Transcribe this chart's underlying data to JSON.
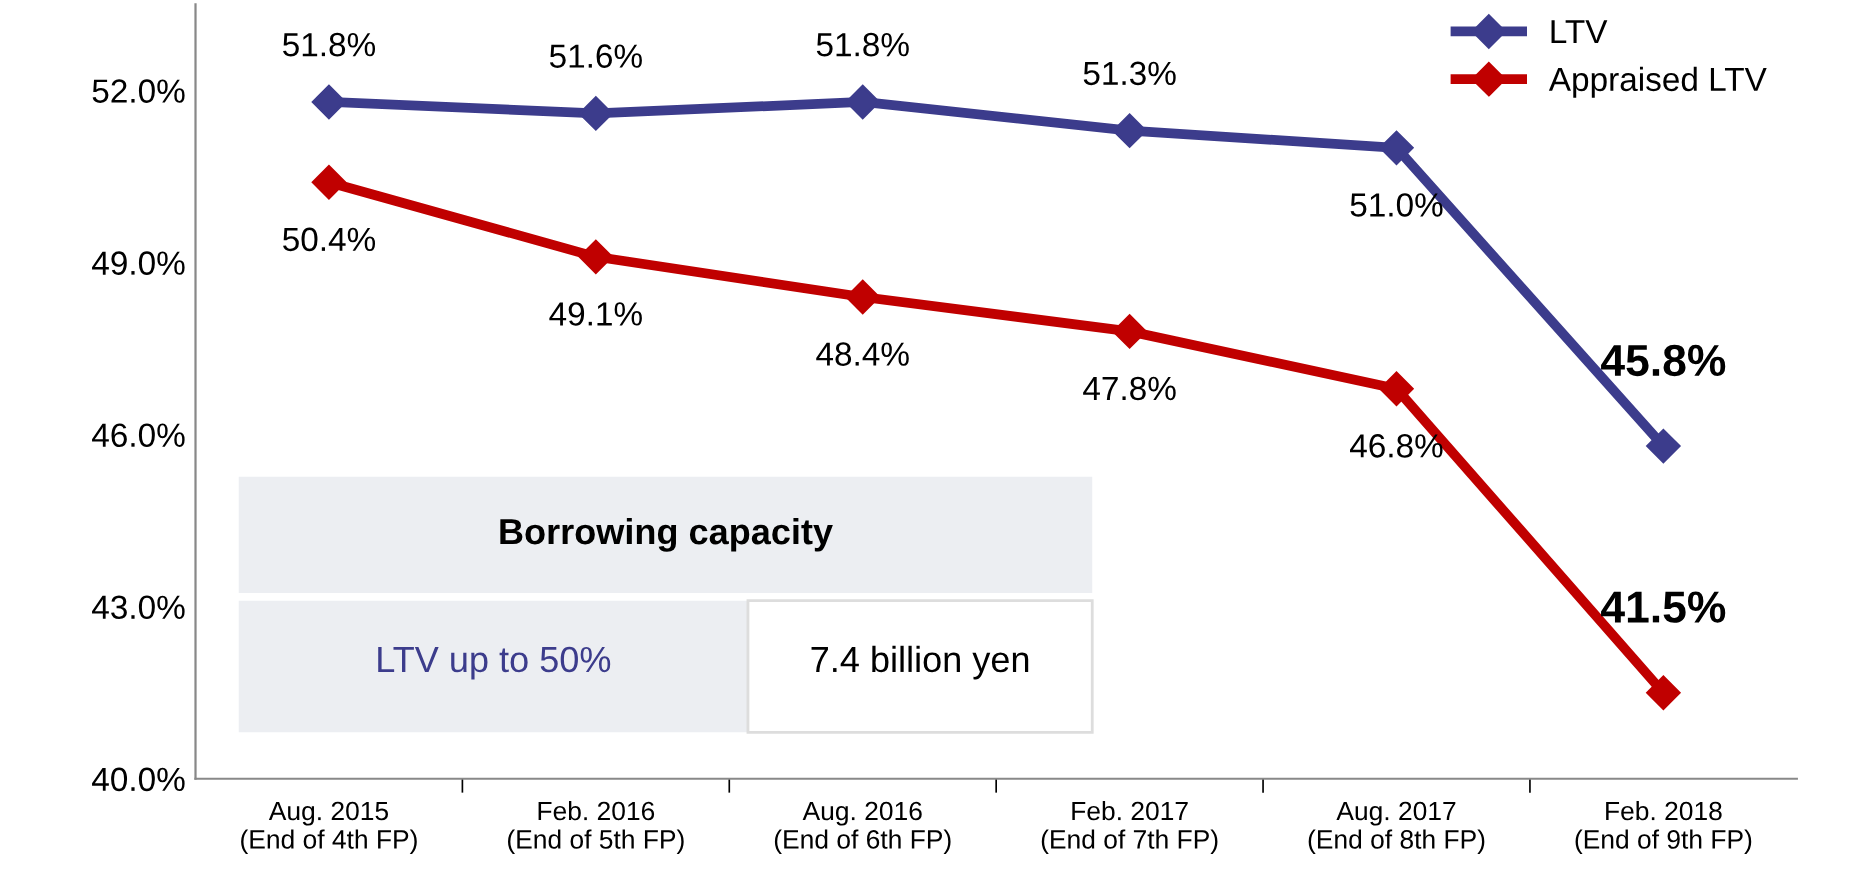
{
  "chart_data": {
    "type": "line",
    "categories": [
      "Aug. 2015\n(End of 4th FP)",
      "Feb. 2016\n(End of 5th FP)",
      "Aug. 2016\n(End of 6th FP)",
      "Feb. 2017\n(End of 7th FP)",
      "Aug. 2017\n(End of 8th FP)",
      "Feb. 2018\n(End of 9th FP)"
    ],
    "series": [
      {
        "name": "LTV",
        "color": "#3c3c8c",
        "values": [
          51.8,
          51.6,
          51.8,
          51.3,
          51.0,
          45.8
        ],
        "value_labels": [
          "51.8%",
          "51.6%",
          "51.8%",
          "51.3%",
          "51.0%",
          "45.8%"
        ]
      },
      {
        "name": "Appraised LTV",
        "color": "#c00000",
        "values": [
          50.4,
          49.1,
          48.4,
          47.8,
          46.8,
          41.5
        ],
        "value_labels": [
          "50.4%",
          "49.1%",
          "48.4%",
          "47.8%",
          "46.8%",
          "41.5%"
        ]
      }
    ],
    "ylim": [
      40,
      53.5
    ],
    "yticks": [
      {
        "value": 40,
        "label": "40.0%"
      },
      {
        "value": 43,
        "label": "43.0%"
      },
      {
        "value": 46,
        "label": "46.0%"
      },
      {
        "value": 49,
        "label": "49.0%"
      },
      {
        "value": 52,
        "label": "52.0%"
      }
    ],
    "grid": false,
    "legend": "top right",
    "marker": "diamond",
    "line_style": "solid",
    "annotations": [
      "Borrowing capacity",
      "LTV up to 50%",
      "7.4 billion yen"
    ]
  }
}
